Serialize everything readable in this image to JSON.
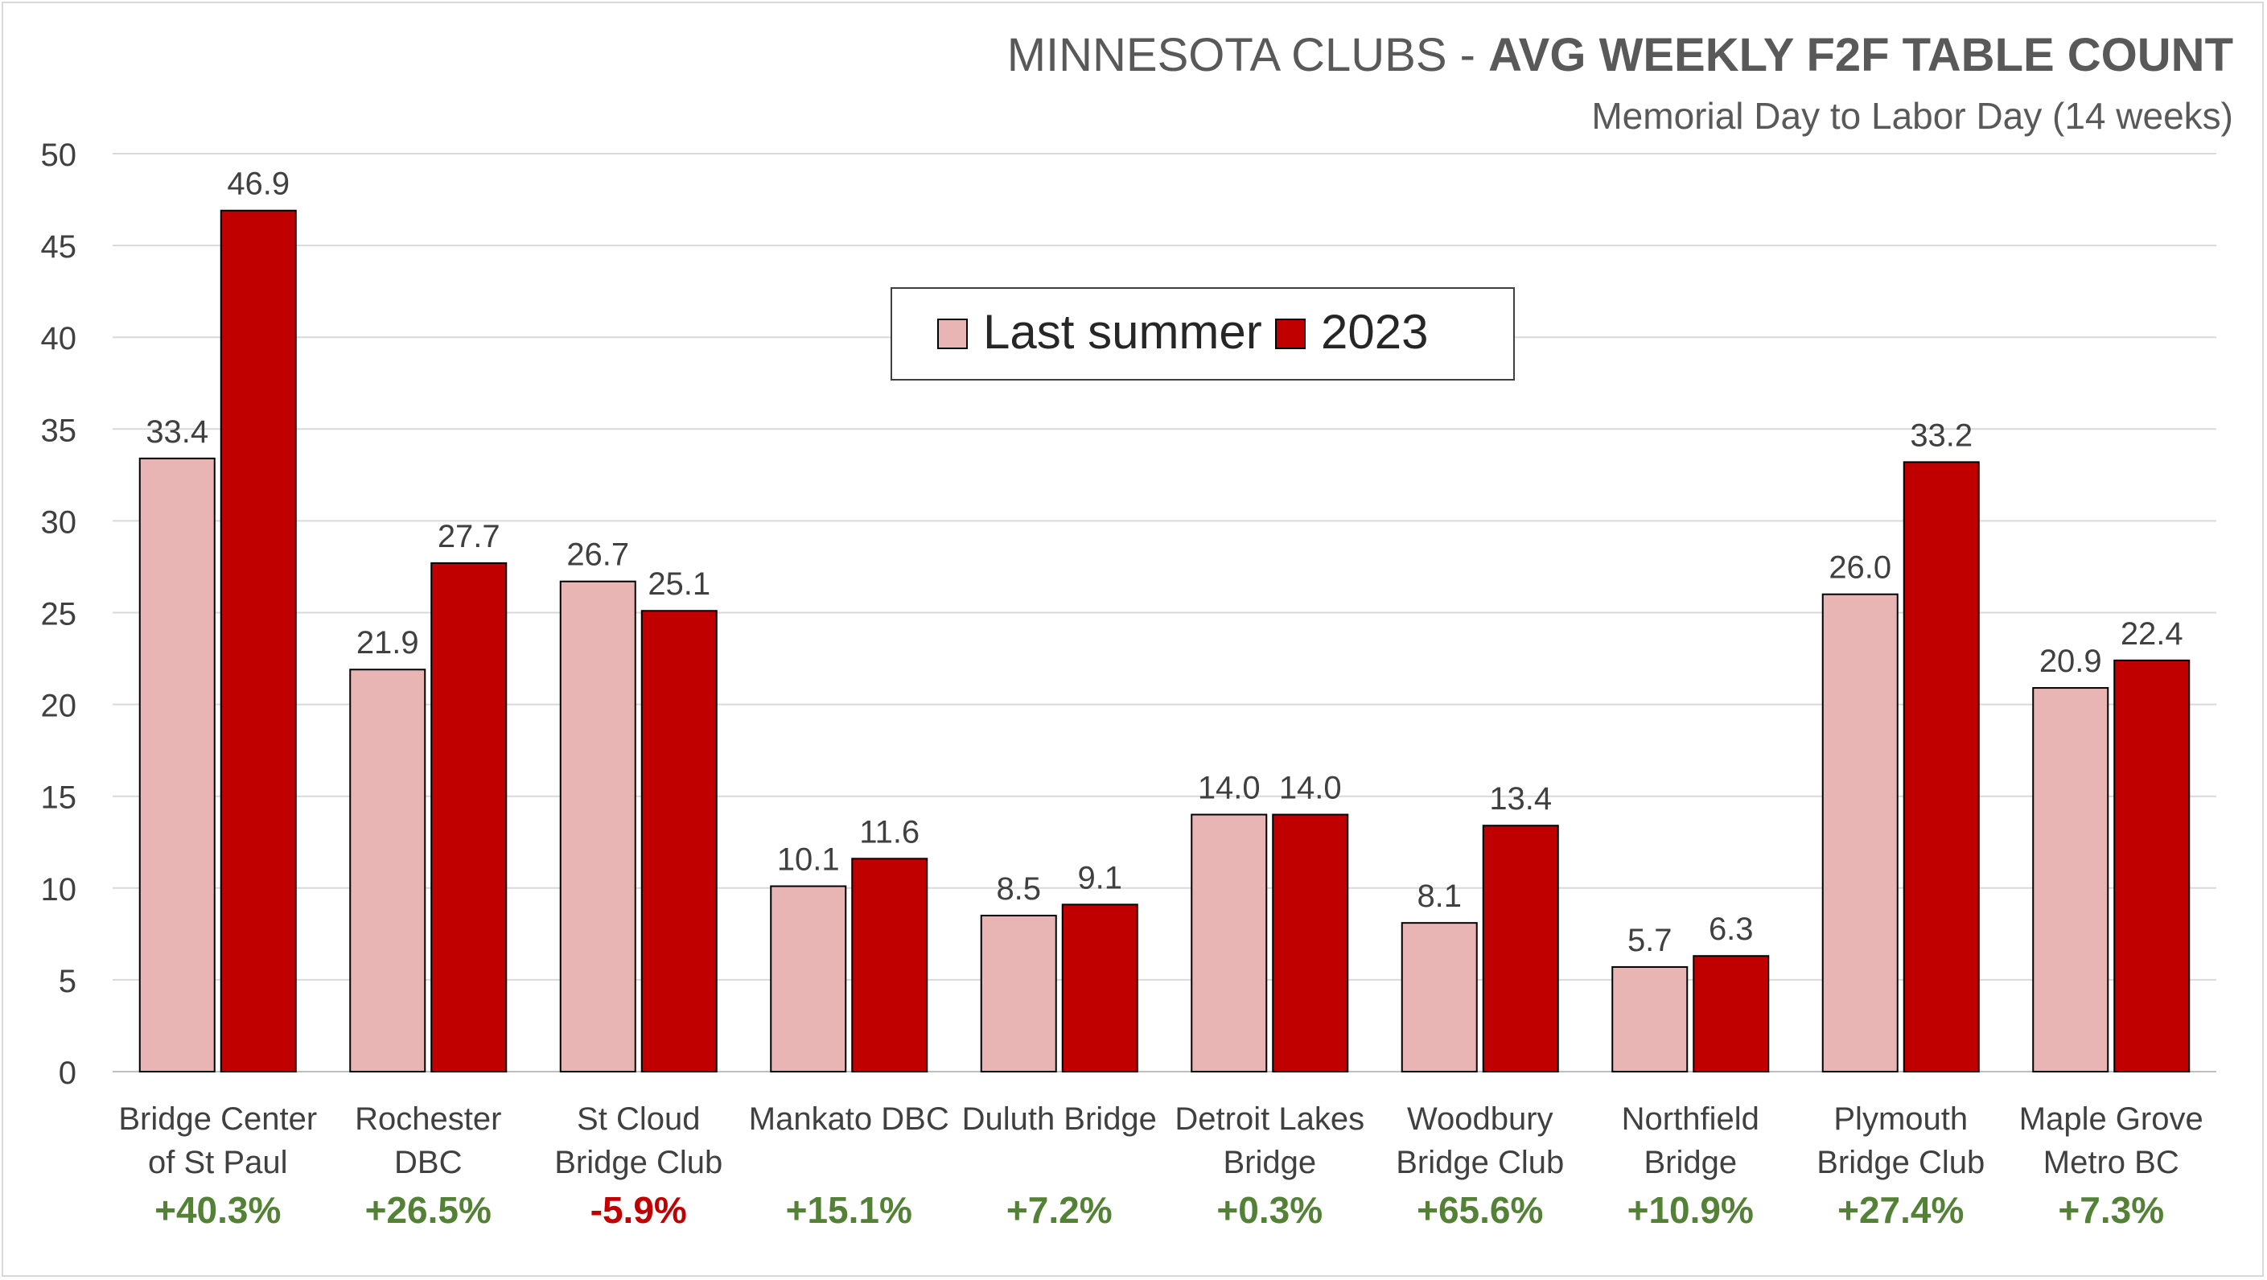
{
  "chart_data": {
    "type": "bar",
    "title_light": "MINNESOTA CLUBS - ",
    "title_bold": "AVG WEEKLY F2F TABLE COUNT",
    "subtitle": "Memorial Day to Labor Day (14 weeks)",
    "xlabel": "",
    "ylabel": "",
    "ylim": [
      0,
      50
    ],
    "yticks": [
      0,
      5,
      10,
      15,
      20,
      25,
      30,
      35,
      40,
      45,
      50
    ],
    "grid": true,
    "legend_position": "top-center",
    "categories": [
      [
        "Bridge Center",
        "of St Paul"
      ],
      [
        "Rochester",
        "DBC"
      ],
      [
        "St Cloud",
        "Bridge Club"
      ],
      [
        "Mankato DBC"
      ],
      [
        "Duluth Bridge"
      ],
      [
        "Detroit Lakes",
        "Bridge"
      ],
      [
        "Woodbury",
        "Bridge Club"
      ],
      [
        "Northfield",
        "Bridge"
      ],
      [
        "Plymouth",
        "Bridge Club"
      ],
      [
        "Maple Grove",
        "Metro BC"
      ]
    ],
    "series": [
      {
        "name": "Last summer",
        "color": "#e8b4b4",
        "values": [
          33.4,
          21.9,
          26.7,
          10.1,
          8.5,
          14.0,
          8.1,
          5.7,
          26.0,
          20.9
        ]
      },
      {
        "name": "2023",
        "color": "#c00000",
        "values": [
          46.9,
          27.7,
          25.1,
          11.6,
          9.1,
          14.0,
          13.4,
          6.3,
          33.2,
          22.4
        ]
      }
    ],
    "changes": [
      "+40.3%",
      "+26.5%",
      "-5.9%",
      "+15.1%",
      "+7.2%",
      "+0.3%",
      "+65.6%",
      "+10.9%",
      "+27.4%",
      "+7.3%"
    ],
    "colors": {
      "positive": "#538135",
      "negative": "#c00000",
      "grid": "#d9d9d9",
      "text": "#404040"
    }
  }
}
